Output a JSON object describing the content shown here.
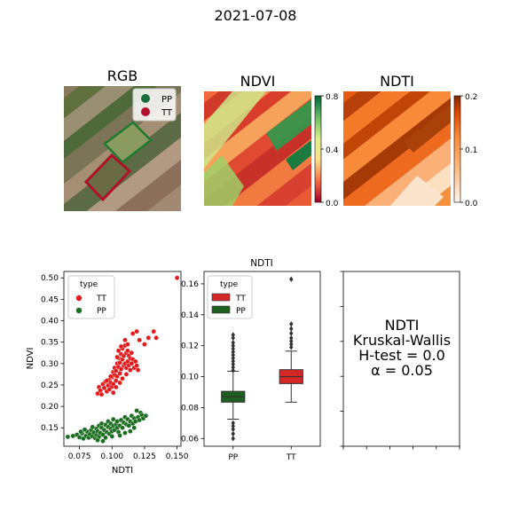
{
  "figure": {
    "title": "2021-07-08",
    "panels": {
      "rgb": {
        "title": "RGB",
        "legend": [
          "PP",
          "TT"
        ]
      },
      "ndvi": {
        "title": "NDVI",
        "colorbar_ticks": [
          "0.8",
          "0.4",
          "0.0"
        ]
      },
      "ndti": {
        "title": "NDTI",
        "colorbar_ticks": [
          "0.2",
          "0.1",
          "0.0"
        ]
      }
    },
    "stats": {
      "line1": "NDTI",
      "line2": "Kruskal-Wallis",
      "line3": "H-test = 0.0",
      "line4": "α = 0.05"
    }
  },
  "colors": {
    "TT": "#e31a1c",
    "PP": "#1b6e1f",
    "tt_box": "#d62728",
    "pp_box": "#1e5e20"
  },
  "chart_data": [
    {
      "type": "scatter",
      "xlabel": "NDTI",
      "ylabel": "NDVI",
      "xlim": [
        0.063,
        0.153
      ],
      "ylim": [
        0.107,
        0.515
      ],
      "xticks": [
        0.075,
        0.1,
        0.125,
        0.15
      ],
      "xtick_labels": [
        "0.075",
        "0.100",
        "0.125",
        "0.150"
      ],
      "yticks": [
        0.15,
        0.2,
        0.25,
        0.3,
        0.35,
        0.4,
        0.45,
        0.5
      ],
      "ytick_labels": [
        "0.15",
        "0.20",
        "0.25",
        "0.30",
        "0.35",
        "0.40",
        "0.45",
        "0.50"
      ],
      "legend_title": "type",
      "legend_position": "upper-left",
      "series": [
        {
          "name": "TT",
          "points": [
            [
              0.09,
              0.245
            ],
            [
              0.091,
              0.237
            ],
            [
              0.093,
              0.252
            ],
            [
              0.094,
              0.243
            ],
            [
              0.095,
              0.258
            ],
            [
              0.096,
              0.235
            ],
            [
              0.097,
              0.249
            ],
            [
              0.098,
              0.262
            ],
            [
              0.098,
              0.24
            ],
            [
              0.099,
              0.255
            ],
            [
              0.1,
              0.268
            ],
            [
              0.1,
              0.246
            ],
            [
              0.101,
              0.28
            ],
            [
              0.101,
              0.252
            ],
            [
              0.102,
              0.273
            ],
            [
              0.102,
              0.29
            ],
            [
              0.103,
              0.26
            ],
            [
              0.103,
              0.283
            ],
            [
              0.104,
              0.3
            ],
            [
              0.104,
              0.27
            ],
            [
              0.105,
              0.292
            ],
            [
              0.105,
              0.313
            ],
            [
              0.106,
              0.277
            ],
            [
              0.106,
              0.302
            ],
            [
              0.107,
              0.322
            ],
            [
              0.107,
              0.287
            ],
            [
              0.108,
              0.31
            ],
            [
              0.108,
              0.335
            ],
            [
              0.109,
              0.295
            ],
            [
              0.109,
              0.318
            ],
            [
              0.11,
              0.342
            ],
            [
              0.11,
              0.3
            ],
            [
              0.111,
              0.325
            ],
            [
              0.111,
              0.29
            ],
            [
              0.112,
              0.33
            ],
            [
              0.112,
              0.305
            ],
            [
              0.113,
              0.318
            ],
            [
              0.113,
              0.296
            ],
            [
              0.114,
              0.312
            ],
            [
              0.115,
              0.325
            ],
            [
              0.115,
              0.3
            ],
            [
              0.116,
              0.31
            ],
            [
              0.117,
              0.29
            ],
            [
              0.118,
              0.305
            ],
            [
              0.119,
              0.295
            ],
            [
              0.12,
              0.285
            ],
            [
              0.096,
              0.26
            ],
            [
              0.099,
              0.27
            ],
            [
              0.103,
              0.245
            ],
            [
              0.106,
              0.255
            ],
            [
              0.108,
              0.265
            ],
            [
              0.111,
              0.275
            ],
            [
              0.114,
              0.285
            ],
            [
              0.104,
              0.315
            ],
            [
              0.107,
              0.34
            ],
            [
              0.11,
              0.355
            ],
            [
              0.105,
              0.33
            ],
            [
              0.112,
              0.345
            ],
            [
              0.116,
              0.37
            ],
            [
              0.119,
              0.375
            ],
            [
              0.121,
              0.355
            ],
            [
              0.128,
              0.36
            ],
            [
              0.132,
              0.375
            ],
            [
              0.134,
              0.36
            ],
            [
              0.125,
              0.345
            ],
            [
              0.089,
              0.23
            ],
            [
              0.092,
              0.228
            ],
            [
              0.101,
              0.232
            ],
            [
              0.15,
              0.5
            ]
          ]
        },
        {
          "name": "PP",
          "points": [
            [
              0.066,
              0.129
            ],
            [
              0.07,
              0.131
            ],
            [
              0.073,
              0.134
            ],
            [
              0.075,
              0.128
            ],
            [
              0.077,
              0.137
            ],
            [
              0.078,
              0.125
            ],
            [
              0.08,
              0.131
            ],
            [
              0.081,
              0.141
            ],
            [
              0.082,
              0.127
            ],
            [
              0.083,
              0.135
            ],
            [
              0.084,
              0.145
            ],
            [
              0.085,
              0.13
            ],
            [
              0.086,
              0.139
            ],
            [
              0.087,
              0.126
            ],
            [
              0.088,
              0.148
            ],
            [
              0.088,
              0.133
            ],
            [
              0.089,
              0.142
            ],
            [
              0.09,
              0.155
            ],
            [
              0.09,
              0.129
            ],
            [
              0.091,
              0.138
            ],
            [
              0.092,
              0.15
            ],
            [
              0.092,
              0.16
            ],
            [
              0.093,
              0.134
            ],
            [
              0.094,
              0.145
            ],
            [
              0.095,
              0.157
            ],
            [
              0.095,
              0.127
            ],
            [
              0.096,
              0.14
            ],
            [
              0.097,
              0.152
            ],
            [
              0.097,
              0.165
            ],
            [
              0.098,
              0.136
            ],
            [
              0.099,
              0.148
            ],
            [
              0.099,
              0.16
            ],
            [
              0.1,
              0.142
            ],
            [
              0.101,
              0.155
            ],
            [
              0.101,
              0.17
            ],
            [
              0.102,
              0.145
            ],
            [
              0.103,
              0.158
            ],
            [
              0.104,
              0.15
            ],
            [
              0.104,
              0.165
            ],
            [
              0.105,
              0.14
            ],
            [
              0.106,
              0.155
            ],
            [
              0.107,
              0.168
            ],
            [
              0.108,
              0.15
            ],
            [
              0.109,
              0.162
            ],
            [
              0.11,
              0.175
            ],
            [
              0.111,
              0.158
            ],
            [
              0.112,
              0.17
            ],
            [
              0.113,
              0.155
            ],
            [
              0.114,
              0.165
            ],
            [
              0.115,
              0.178
            ],
            [
              0.116,
              0.16
            ],
            [
              0.117,
              0.172
            ],
            [
              0.118,
              0.165
            ],
            [
              0.119,
              0.19
            ],
            [
              0.12,
              0.175
            ],
            [
              0.121,
              0.168
            ],
            [
              0.122,
              0.185
            ],
            [
              0.123,
              0.18
            ],
            [
              0.124,
              0.172
            ],
            [
              0.126,
              0.178
            ],
            [
              0.076,
              0.141
            ],
            [
              0.079,
              0.146
            ],
            [
              0.085,
              0.152
            ],
            [
              0.089,
              0.121
            ],
            [
              0.093,
              0.119
            ],
            [
              0.1,
              0.13
            ],
            [
              0.106,
              0.132
            ],
            [
              0.11,
              0.138
            ],
            [
              0.114,
              0.142
            ],
            [
              0.117,
              0.15
            ]
          ]
        }
      ]
    },
    {
      "type": "box",
      "title": "NDTI",
      "xlabel": "",
      "ylabel": "",
      "categories": [
        "PP",
        "TT"
      ],
      "ylim": [
        0.055,
        0.168
      ],
      "yticks": [
        0.06,
        0.08,
        0.1,
        0.12,
        0.14,
        0.16
      ],
      "ytick_labels": [
        "0.06",
        "0.08",
        "0.10",
        "0.12",
        "0.14",
        "0.16"
      ],
      "legend_title": "type",
      "legend_position": "upper-left",
      "legend_order": [
        "TT",
        "PP"
      ],
      "boxes": [
        {
          "name": "PP",
          "q1": 0.0835,
          "median": 0.087,
          "q3": 0.0905,
          "whisker_low": 0.0725,
          "whisker_high": 0.1035,
          "outliers": [
            0.06,
            0.063,
            0.066,
            0.068,
            0.07,
            0.104,
            0.106,
            0.108,
            0.11,
            0.112,
            0.114,
            0.116,
            0.118,
            0.12,
            0.122,
            0.125,
            0.127
          ]
        },
        {
          "name": "TT",
          "q1": 0.0955,
          "median": 0.1,
          "q3": 0.1045,
          "whisker_low": 0.0835,
          "whisker_high": 0.1165,
          "outliers": [
            0.119,
            0.121,
            0.123,
            0.125,
            0.128,
            0.131,
            0.134,
            0.163
          ]
        }
      ]
    },
    {
      "type": "text",
      "xlim": [
        0,
        1
      ],
      "ylim": [
        0,
        1
      ],
      "xticks": [
        0,
        0.2,
        0.4,
        0.6,
        0.8,
        1.0
      ],
      "yticks": [
        0,
        0.2,
        0.4,
        0.6,
        0.8,
        1.0
      ],
      "tick_labels_shown": false
    }
  ]
}
